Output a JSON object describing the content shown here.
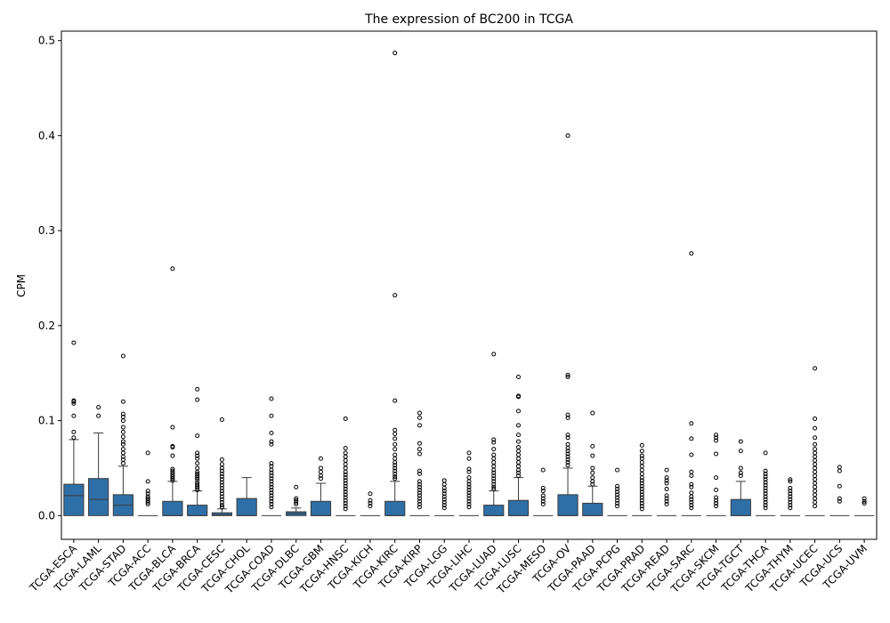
{
  "chart_data": {
    "type": "box",
    "title": "The expression of BC200 in TCGA",
    "xlabel": "",
    "ylabel": "CPM",
    "ylim": [
      -0.025,
      0.51
    ],
    "yticks": [
      0.0,
      0.1,
      0.2,
      0.3,
      0.4,
      0.5
    ],
    "ytick_labels": [
      "0.0",
      "0.1",
      "0.2",
      "0.3",
      "0.4",
      "0.5"
    ],
    "box_color": "#2f6fa7",
    "grid": false,
    "categories": [
      "TCGA-ESCA",
      "TCGA-LAML",
      "TCGA-STAD",
      "TCGA-ACC",
      "TCGA-BLCA",
      "TCGA-BRCA",
      "TCGA-CESC",
      "TCGA-CHOL",
      "TCGA-COAD",
      "TCGA-DLBC",
      "TCGA-GBM",
      "TCGA-HNSC",
      "TCGA-KICH",
      "TCGA-KIRC",
      "TCGA-KIRP",
      "TCGA-LGG",
      "TCGA-LIHC",
      "TCGA-LUAD",
      "TCGA-LUSC",
      "TCGA-MESO",
      "TCGA-OV",
      "TCGA-PAAD",
      "TCGA-PCPG",
      "TCGA-PRAD",
      "TCGA-READ",
      "TCGA-SARC",
      "TCGA-SKCM",
      "TCGA-TGCT",
      "TCGA-THCA",
      "TCGA-THYM",
      "TCGA-UCEC",
      "TCGA-UCS",
      "TCGA-UVM"
    ],
    "boxes": [
      {
        "q1": 0.0,
        "median": 0.021,
        "q3": 0.033,
        "whislo": 0.0,
        "whishi": 0.08,
        "fliers": [
          0.182,
          0.121,
          0.12,
          0.118,
          0.105,
          0.088,
          0.082
        ]
      },
      {
        "q1": 0.0,
        "median": 0.017,
        "q3": 0.039,
        "whislo": 0.0,
        "whishi": 0.087,
        "fliers": [
          0.114,
          0.105
        ]
      },
      {
        "q1": 0.0,
        "median": 0.011,
        "q3": 0.022,
        "whislo": 0.0,
        "whishi": 0.052,
        "fliers": [
          0.168,
          0.12,
          0.107,
          0.104,
          0.1,
          0.093,
          0.088,
          0.083,
          0.078,
          0.075,
          0.07,
          0.066,
          0.062,
          0.059,
          0.055
        ]
      },
      {
        "q1": 0.0,
        "median": 0.0,
        "q3": 0.0,
        "whislo": 0.0,
        "whishi": 0.0,
        "fliers": [
          0.066,
          0.036,
          0.026,
          0.023,
          0.02,
          0.018,
          0.016,
          0.014,
          0.012
        ]
      },
      {
        "q1": 0.0,
        "median": 0.0,
        "q3": 0.015,
        "whislo": 0.0,
        "whishi": 0.036,
        "fliers": [
          0.26,
          0.093,
          0.073,
          0.072,
          0.063,
          0.049,
          0.047,
          0.045,
          0.043,
          0.041,
          0.039,
          0.037
        ]
      },
      {
        "q1": 0.0,
        "median": 0.0,
        "q3": 0.011,
        "whislo": 0.0,
        "whishi": 0.026,
        "fliers": [
          0.133,
          0.122,
          0.084,
          0.066,
          0.063,
          0.06,
          0.055,
          0.05,
          0.046,
          0.044,
          0.042,
          0.04,
          0.038,
          0.035,
          0.033,
          0.031,
          0.029,
          0.027
        ]
      },
      {
        "q1": 0.0,
        "median": 0.001,
        "q3": 0.003,
        "whislo": 0.0,
        "whishi": 0.007,
        "fliers": [
          0.101,
          0.059,
          0.054,
          0.05,
          0.047,
          0.044,
          0.041,
          0.038,
          0.035,
          0.032,
          0.029,
          0.026,
          0.023,
          0.02,
          0.017,
          0.014,
          0.011,
          0.009
        ]
      },
      {
        "q1": 0.0,
        "median": 0.0,
        "q3": 0.018,
        "whislo": 0.0,
        "whishi": 0.04,
        "fliers": []
      },
      {
        "q1": 0.0,
        "median": 0.0,
        "q3": 0.0,
        "whislo": 0.0,
        "whishi": 0.0,
        "fliers": [
          0.123,
          0.105,
          0.087,
          0.078,
          0.075,
          0.055,
          0.052,
          0.048,
          0.045,
          0.042,
          0.039,
          0.036,
          0.033,
          0.03,
          0.027,
          0.024,
          0.021,
          0.018,
          0.015,
          0.012,
          0.009
        ]
      },
      {
        "q1": 0.0,
        "median": 0.002,
        "q3": 0.004,
        "whislo": 0.0,
        "whishi": 0.008,
        "fliers": [
          0.03,
          0.018,
          0.016,
          0.014,
          0.012
        ]
      },
      {
        "q1": 0.0,
        "median": 0.0,
        "q3": 0.015,
        "whislo": 0.0,
        "whishi": 0.034,
        "fliers": [
          0.06,
          0.05,
          0.046,
          0.042,
          0.039
        ]
      },
      {
        "q1": 0.0,
        "median": 0.0,
        "q3": 0.0,
        "whislo": 0.0,
        "whishi": 0.0,
        "fliers": [
          0.102,
          0.071,
          0.066,
          0.062,
          0.058,
          0.054,
          0.05,
          0.046,
          0.043,
          0.04,
          0.037,
          0.034,
          0.031,
          0.028,
          0.025,
          0.022,
          0.019,
          0.016,
          0.013,
          0.01,
          0.007
        ]
      },
      {
        "q1": 0.0,
        "median": 0.0,
        "q3": 0.0,
        "whislo": 0.0,
        "whishi": 0.0,
        "fliers": [
          0.023,
          0.016,
          0.013,
          0.01
        ]
      },
      {
        "q1": 0.0,
        "median": 0.0,
        "q3": 0.015,
        "whislo": 0.0,
        "whishi": 0.036,
        "fliers": [
          0.487,
          0.232,
          0.121,
          0.09,
          0.086,
          0.081,
          0.075,
          0.07,
          0.064,
          0.06,
          0.056,
          0.053,
          0.05,
          0.047,
          0.044,
          0.041,
          0.039
        ]
      },
      {
        "q1": 0.0,
        "median": 0.0,
        "q3": 0.0,
        "whislo": 0.0,
        "whishi": 0.0,
        "fliers": [
          0.108,
          0.103,
          0.095,
          0.076,
          0.07,
          0.065,
          0.047,
          0.044,
          0.036,
          0.033,
          0.03,
          0.027,
          0.024,
          0.021,
          0.018,
          0.015,
          0.012,
          0.009
        ]
      },
      {
        "q1": 0.0,
        "median": 0.0,
        "q3": 0.0,
        "whislo": 0.0,
        "whishi": 0.0,
        "fliers": [
          0.037,
          0.033,
          0.029,
          0.026,
          0.023,
          0.02,
          0.017,
          0.014,
          0.011,
          0.008
        ]
      },
      {
        "q1": 0.0,
        "median": 0.0,
        "q3": 0.0,
        "whislo": 0.0,
        "whishi": 0.0,
        "fliers": [
          0.066,
          0.06,
          0.049,
          0.046,
          0.04,
          0.036,
          0.033,
          0.03,
          0.027,
          0.024,
          0.021,
          0.018,
          0.015,
          0.012,
          0.009
        ]
      },
      {
        "q1": 0.0,
        "median": 0.0,
        "q3": 0.011,
        "whislo": 0.0,
        "whishi": 0.026,
        "fliers": [
          0.17,
          0.08,
          0.077,
          0.07,
          0.064,
          0.06,
          0.056,
          0.052,
          0.048,
          0.045,
          0.042,
          0.039,
          0.036,
          0.033,
          0.03,
          0.028
        ]
      },
      {
        "q1": 0.0,
        "median": 0.0,
        "q3": 0.016,
        "whislo": 0.0,
        "whishi": 0.04,
        "fliers": [
          0.146,
          0.126,
          0.125,
          0.11,
          0.095,
          0.085,
          0.078,
          0.072,
          0.068,
          0.064,
          0.06,
          0.056,
          0.052,
          0.048,
          0.045,
          0.042
        ]
      },
      {
        "q1": 0.0,
        "median": 0.0,
        "q3": 0.0,
        "whislo": 0.0,
        "whishi": 0.0,
        "fliers": [
          0.048,
          0.029,
          0.026,
          0.021,
          0.018,
          0.015,
          0.012
        ]
      },
      {
        "q1": 0.0,
        "median": 0.0,
        "q3": 0.022,
        "whislo": 0.0,
        "whishi": 0.05,
        "fliers": [
          0.4,
          0.148,
          0.146,
          0.106,
          0.103,
          0.085,
          0.082,
          0.075,
          0.071,
          0.068,
          0.065,
          0.062,
          0.059,
          0.056,
          0.053
        ]
      },
      {
        "q1": 0.0,
        "median": 0.0,
        "q3": 0.013,
        "whislo": 0.0,
        "whishi": 0.031,
        "fliers": [
          0.108,
          0.073,
          0.063,
          0.05,
          0.045,
          0.04,
          0.036,
          0.033
        ]
      },
      {
        "q1": 0.0,
        "median": 0.0,
        "q3": 0.0,
        "whislo": 0.0,
        "whishi": 0.0,
        "fliers": [
          0.048,
          0.031,
          0.028,
          0.025,
          0.022,
          0.019,
          0.016,
          0.013,
          0.01
        ]
      },
      {
        "q1": 0.0,
        "median": 0.0,
        "q3": 0.0,
        "whislo": 0.0,
        "whishi": 0.0,
        "fliers": [
          0.074,
          0.068,
          0.063,
          0.06,
          0.056,
          0.052,
          0.048,
          0.044,
          0.04,
          0.037,
          0.034,
          0.031,
          0.028,
          0.025,
          0.022,
          0.019,
          0.016,
          0.013,
          0.01,
          0.007
        ]
      },
      {
        "q1": 0.0,
        "median": 0.0,
        "q3": 0.0,
        "whislo": 0.0,
        "whishi": 0.0,
        "fliers": [
          0.048,
          0.04,
          0.037,
          0.034,
          0.028,
          0.021,
          0.018,
          0.015,
          0.012
        ]
      },
      {
        "q1": 0.0,
        "median": 0.0,
        "q3": 0.0,
        "whislo": 0.0,
        "whishi": 0.0,
        "fliers": [
          0.276,
          0.097,
          0.081,
          0.064,
          0.046,
          0.042,
          0.033,
          0.03,
          0.024,
          0.02,
          0.017,
          0.014,
          0.011,
          0.008
        ]
      },
      {
        "q1": 0.0,
        "median": 0.0,
        "q3": 0.0,
        "whislo": 0.0,
        "whishi": 0.0,
        "fliers": [
          0.085,
          0.082,
          0.079,
          0.065,
          0.04,
          0.027,
          0.019,
          0.016,
          0.013,
          0.01
        ]
      },
      {
        "q1": 0.0,
        "median": 0.0,
        "q3": 0.017,
        "whislo": 0.0,
        "whishi": 0.036,
        "fliers": [
          0.078,
          0.068,
          0.05,
          0.045,
          0.042
        ]
      },
      {
        "q1": 0.0,
        "median": 0.0,
        "q3": 0.0,
        "whislo": 0.0,
        "whishi": 0.0,
        "fliers": [
          0.066,
          0.047,
          0.044,
          0.041,
          0.038,
          0.035,
          0.032,
          0.029,
          0.026,
          0.023,
          0.02,
          0.017,
          0.014,
          0.011,
          0.008
        ]
      },
      {
        "q1": 0.0,
        "median": 0.0,
        "q3": 0.0,
        "whislo": 0.0,
        "whishi": 0.0,
        "fliers": [
          0.038,
          0.036,
          0.029,
          0.026,
          0.023,
          0.02,
          0.017,
          0.014,
          0.011,
          0.008
        ]
      },
      {
        "q1": 0.0,
        "median": 0.0,
        "q3": 0.0,
        "whislo": 0.0,
        "whishi": 0.0,
        "fliers": [
          0.155,
          0.102,
          0.092,
          0.082,
          0.075,
          0.07,
          0.066,
          0.062,
          0.058,
          0.054,
          0.05,
          0.046,
          0.042,
          0.038,
          0.034,
          0.03,
          0.026,
          0.022,
          0.018,
          0.014,
          0.01
        ]
      },
      {
        "q1": 0.0,
        "median": 0.0,
        "q3": 0.0,
        "whislo": 0.0,
        "whishi": 0.0,
        "fliers": [
          0.051,
          0.047,
          0.031,
          0.018,
          0.015
        ]
      },
      {
        "q1": 0.0,
        "median": 0.0,
        "q3": 0.0,
        "whislo": 0.0,
        "whishi": 0.0,
        "fliers": [
          0.018,
          0.015,
          0.013
        ]
      }
    ]
  }
}
